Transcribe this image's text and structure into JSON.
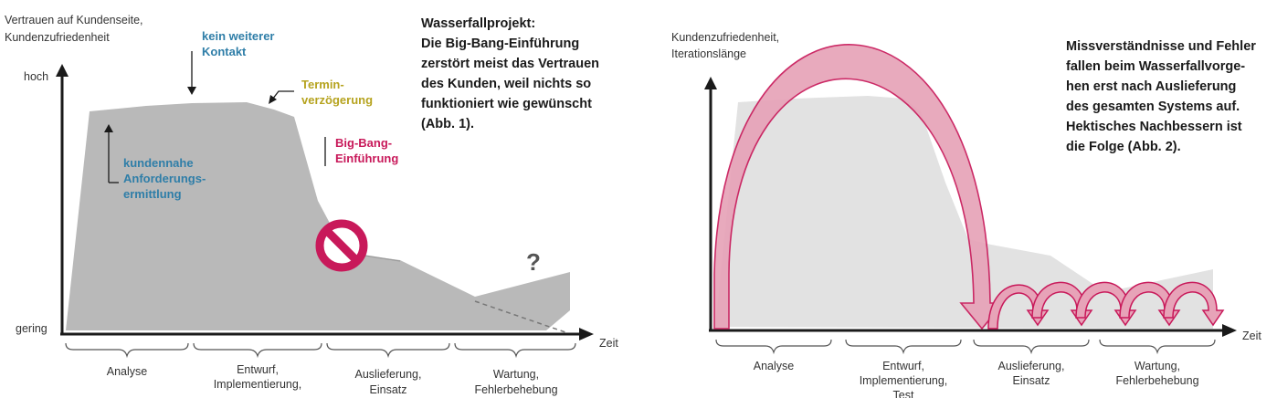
{
  "colors": {
    "area_fill": "#b9b9b9",
    "area_light": "#e2e2e2",
    "blue_note": "#2f7ea8",
    "olive_note": "#b6a31f",
    "magenta": "#c8195a",
    "arrow_fill": "#e7a3b8",
    "arrow_stroke": "#c8195a",
    "axis": "#1a1a1a"
  },
  "figure1": {
    "y_axis_label": [
      "Vertrauen auf Kundenseite,",
      "Kundenzufriedenheit"
    ],
    "y_high": "hoch",
    "y_low": "gering",
    "x_axis_label": "Zeit",
    "phases": [
      {
        "label": [
          "Analyse"
        ]
      },
      {
        "label": [
          "Entwurf,",
          "Implementierung,"
        ]
      },
      {
        "label": [
          "Auslieferung,",
          "Einsatz"
        ]
      },
      {
        "label": [
          "Wartung,",
          "Fehlerbehebung"
        ]
      }
    ],
    "annotations": {
      "kein_kontakt": [
        "kein weiterer",
        "Kontakt"
      ],
      "termin": [
        "Termin-",
        "verzögerung"
      ],
      "big_bang": [
        "Big-Bang-",
        "Einführung"
      ],
      "kundennahe": [
        "kundennahe",
        "Anforderungs-",
        "ermittlung"
      ],
      "question": "?"
    },
    "caption": [
      "Wasserfallprojekt:",
      "Die Big-Bang-Einführung",
      "zerstört meist das Vertrauen",
      "des Kunden, weil nichts so",
      "funktioniert wie gewünscht",
      "(Abb. 1)."
    ]
  },
  "figure2": {
    "y_axis_label": [
      "Kundenzufriedenheit,",
      "Iterationslänge"
    ],
    "x_axis_label": "Zeit",
    "phases": [
      {
        "label": [
          "Analyse"
        ]
      },
      {
        "label": [
          "Entwurf,",
          "Implementierung,",
          "Test"
        ]
      },
      {
        "label": [
          "Auslieferung,",
          "Einsatz"
        ]
      },
      {
        "label": [
          "Wartung,",
          "Fehlerbehebung"
        ]
      }
    ],
    "caption": [
      "Missverständnisse und Fehler",
      "fallen beim Wasserfallvorge-",
      "hen erst nach Auslieferung",
      "des gesamten Systems auf.",
      "Hektisches Nachbessern ist",
      "die Folge (Abb. 2)."
    ]
  }
}
